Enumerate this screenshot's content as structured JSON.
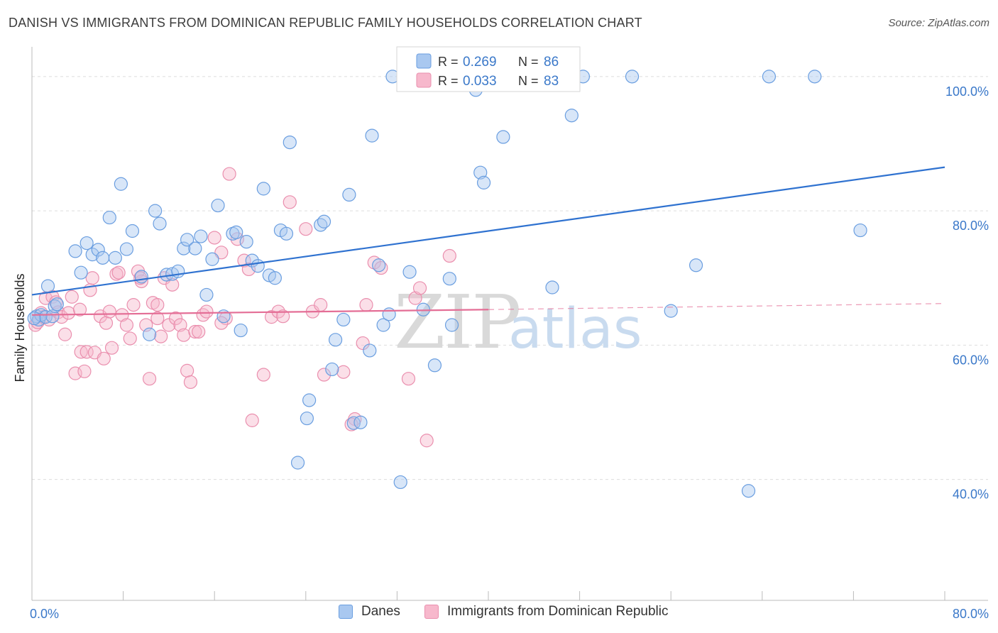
{
  "chart_data": {
    "type": "scatter",
    "title": "DANISH VS IMMIGRANTS FROM DOMINICAN REPUBLIC FAMILY HOUSEHOLDS CORRELATION CHART",
    "source": "Source: ZipAtlas.com",
    "ylabel": "Family Households",
    "xlim": [
      0,
      80
    ],
    "ylim": [
      22,
      104
    ],
    "x_tick_labels": [
      {
        "value": 0,
        "label": "0.0%"
      },
      {
        "value": 80,
        "label": "80.0%"
      }
    ],
    "y_tick_labels": [
      {
        "value": 100,
        "label": "100.0%"
      },
      {
        "value": 80,
        "label": "80.0%"
      },
      {
        "value": 60,
        "label": "60.0%"
      },
      {
        "value": 40,
        "label": "40.0%"
      }
    ],
    "watermark": "ZIPatlas",
    "colors": {
      "danes_fill": "#a9c8f0",
      "danes_stroke": "#6a9ee0",
      "danes_line": "#2f72d0",
      "dom_fill": "#f7b8cc",
      "dom_stroke": "#ea8fae",
      "dom_line": "#e46e96",
      "accent": "#3a78c9",
      "grid": "#dddddd"
    },
    "legend": [
      {
        "series": "Danes",
        "r_label": "R =",
        "r_value": "0.269",
        "n_label": "N =",
        "n_value": "86"
      },
      {
        "series": "Immigrants from Dominican Republic",
        "r_label": "R =",
        "r_value": "0.033",
        "n_label": "N =",
        "n_value": "83"
      }
    ],
    "series": [
      {
        "name": "Danes",
        "trend": {
          "x": [
            0,
            80
          ],
          "y": [
            67.5,
            86.5
          ]
        },
        "points": [
          [
            0.4,
            64.3
          ],
          [
            0.6,
            63.8
          ],
          [
            0.8,
            64.5
          ],
          [
            1.2,
            64.2
          ],
          [
            1.4,
            68.8
          ],
          [
            1.8,
            64.3
          ],
          [
            2.0,
            65.8
          ],
          [
            2.2,
            66.1
          ],
          [
            3.8,
            74.0
          ],
          [
            4.3,
            70.8
          ],
          [
            4.8,
            75.2
          ],
          [
            5.3,
            73.5
          ],
          [
            5.8,
            74.2
          ],
          [
            6.2,
            73.0
          ],
          [
            6.8,
            79.0
          ],
          [
            7.3,
            73.0
          ],
          [
            7.8,
            84.0
          ],
          [
            8.3,
            74.3
          ],
          [
            8.8,
            77.0
          ],
          [
            9.6,
            70.2
          ],
          [
            10.3,
            61.6
          ],
          [
            10.8,
            80.0
          ],
          [
            11.2,
            78.1
          ],
          [
            11.8,
            70.5
          ],
          [
            12.3,
            70.6
          ],
          [
            12.8,
            71.0
          ],
          [
            13.3,
            74.4
          ],
          [
            13.6,
            75.7
          ],
          [
            14.3,
            74.4
          ],
          [
            14.8,
            76.2
          ],
          [
            15.3,
            67.5
          ],
          [
            15.8,
            72.8
          ],
          [
            16.3,
            80.8
          ],
          [
            16.8,
            64.3
          ],
          [
            17.6,
            76.6
          ],
          [
            17.9,
            76.8
          ],
          [
            18.3,
            62.2
          ],
          [
            18.8,
            75.4
          ],
          [
            19.3,
            72.6
          ],
          [
            19.8,
            71.8
          ],
          [
            20.3,
            83.3
          ],
          [
            20.8,
            70.4
          ],
          [
            21.3,
            70.0
          ],
          [
            21.8,
            77.1
          ],
          [
            22.3,
            76.6
          ],
          [
            22.6,
            90.2
          ],
          [
            23.3,
            42.5
          ],
          [
            24.3,
            51.8
          ],
          [
            24.1,
            49.1
          ],
          [
            25.3,
            77.9
          ],
          [
            25.6,
            78.4
          ],
          [
            26.3,
            56.4
          ],
          [
            26.6,
            60.8
          ],
          [
            27.3,
            63.8
          ],
          [
            27.8,
            82.4
          ],
          [
            28.2,
            48.4
          ],
          [
            28.8,
            48.5
          ],
          [
            29.6,
            59.2
          ],
          [
            29.8,
            91.2
          ],
          [
            30.4,
            71.9
          ],
          [
            30.8,
            63.0
          ],
          [
            31.3,
            64.6
          ],
          [
            32.3,
            39.6
          ],
          [
            33.1,
            70.9
          ],
          [
            34.3,
            65.3
          ],
          [
            35.3,
            57.0
          ],
          [
            36.6,
            69.9
          ],
          [
            36.8,
            63.0
          ],
          [
            38.9,
            98.0
          ],
          [
            39.3,
            85.7
          ],
          [
            39.6,
            84.2
          ],
          [
            41.3,
            91.0
          ],
          [
            45.6,
            68.6
          ],
          [
            47.3,
            94.2
          ],
          [
            48.3,
            100.0
          ],
          [
            52.6,
            100.0
          ],
          [
            56.0,
            65.1
          ],
          [
            58.2,
            71.9
          ],
          [
            62.8,
            38.3
          ],
          [
            64.6,
            100.0
          ],
          [
            68.6,
            100.0
          ],
          [
            72.6,
            77.1
          ],
          [
            31.6,
            100.0
          ],
          [
            42.5,
            100.0
          ],
          [
            43.3,
            100.0
          ],
          [
            0.2,
            64.0
          ]
        ]
      },
      {
        "name": "Immigrants from Dominican Republic",
        "trend": {
          "x": [
            0,
            40
          ],
          "y": [
            64.5,
            65.3
          ]
        },
        "trend_ext": {
          "x": [
            40,
            80
          ],
          "y": [
            65.3,
            66.2
          ]
        },
        "points": [
          [
            0.3,
            63.0
          ],
          [
            0.5,
            63.4
          ],
          [
            0.8,
            64.8
          ],
          [
            1.0,
            64.2
          ],
          [
            1.2,
            67.0
          ],
          [
            1.5,
            63.8
          ],
          [
            1.8,
            67.2
          ],
          [
            2.1,
            66.4
          ],
          [
            2.3,
            64.9
          ],
          [
            2.6,
            64.2
          ],
          [
            2.9,
            61.6
          ],
          [
            3.2,
            64.8
          ],
          [
            3.5,
            67.2
          ],
          [
            3.8,
            55.8
          ],
          [
            4.2,
            65.3
          ],
          [
            4.3,
            59.0
          ],
          [
            4.6,
            56.1
          ],
          [
            4.8,
            59.0
          ],
          [
            5.1,
            68.2
          ],
          [
            5.3,
            70.0
          ],
          [
            5.5,
            58.9
          ],
          [
            6.0,
            64.3
          ],
          [
            6.3,
            58.0
          ],
          [
            6.5,
            63.3
          ],
          [
            6.8,
            65.0
          ],
          [
            7.0,
            59.6
          ],
          [
            7.4,
            70.6
          ],
          [
            7.6,
            70.8
          ],
          [
            7.9,
            64.5
          ],
          [
            8.3,
            63.0
          ],
          [
            8.6,
            61.0
          ],
          [
            8.9,
            66.0
          ],
          [
            9.3,
            71.0
          ],
          [
            9.6,
            69.5
          ],
          [
            10.0,
            63.0
          ],
          [
            10.3,
            55.0
          ],
          [
            10.6,
            66.3
          ],
          [
            11.0,
            64.0
          ],
          [
            11.3,
            61.3
          ],
          [
            11.6,
            70.0
          ],
          [
            12.0,
            63.0
          ],
          [
            12.3,
            69.0
          ],
          [
            12.6,
            64.0
          ],
          [
            13.0,
            63.0
          ],
          [
            13.3,
            61.5
          ],
          [
            13.6,
            56.2
          ],
          [
            13.9,
            54.5
          ],
          [
            14.3,
            62.0
          ],
          [
            14.6,
            62.0
          ],
          [
            15.0,
            64.5
          ],
          [
            15.3,
            65.0
          ],
          [
            16.0,
            76.0
          ],
          [
            16.6,
            73.8
          ],
          [
            17.0,
            64.0
          ],
          [
            17.3,
            85.5
          ],
          [
            18.0,
            75.8
          ],
          [
            18.6,
            72.6
          ],
          [
            19.0,
            71.3
          ],
          [
            19.3,
            48.8
          ],
          [
            20.3,
            55.6
          ],
          [
            21.0,
            64.2
          ],
          [
            21.6,
            65.0
          ],
          [
            22.6,
            81.3
          ],
          [
            24.0,
            77.3
          ],
          [
            24.6,
            65.0
          ],
          [
            25.3,
            66.0
          ],
          [
            25.6,
            55.6
          ],
          [
            27.3,
            56.0
          ],
          [
            28.3,
            49.0
          ],
          [
            29.0,
            60.3
          ],
          [
            29.3,
            66.0
          ],
          [
            30.0,
            72.3
          ],
          [
            30.6,
            71.5
          ],
          [
            33.0,
            55.0
          ],
          [
            33.6,
            67.0
          ],
          [
            34.0,
            68.5
          ],
          [
            34.6,
            45.8
          ],
          [
            36.6,
            73.3
          ],
          [
            9.5,
            70.0
          ],
          [
            11.0,
            66.0
          ],
          [
            16.6,
            63.3
          ],
          [
            22.0,
            64.3
          ],
          [
            28.0,
            48.2
          ]
        ]
      }
    ]
  }
}
